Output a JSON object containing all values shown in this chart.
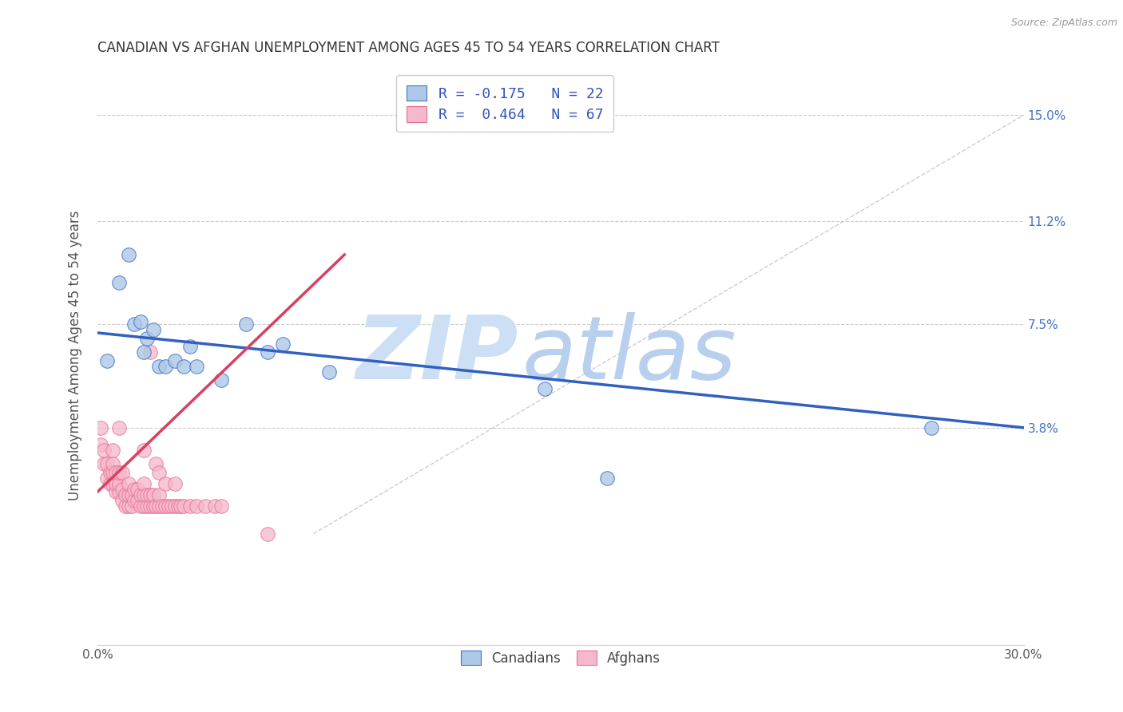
{
  "title": "CANADIAN VS AFGHAN UNEMPLOYMENT AMONG AGES 45 TO 54 YEARS CORRELATION CHART",
  "source": "Source: ZipAtlas.com",
  "ylabel": "Unemployment Among Ages 45 to 54 years",
  "y_tick_labels": [
    "3.8%",
    "7.5%",
    "11.2%",
    "15.0%"
  ],
  "y_ticks": [
    0.038,
    0.075,
    0.112,
    0.15
  ],
  "xlim": [
    0.0,
    0.3
  ],
  "ylim": [
    -0.04,
    0.168
  ],
  "legend_line1": "R = -0.175   N = 22",
  "legend_line2": "R =  0.464   N = 67",
  "canadian_fill": "#adc8e8",
  "afghan_fill": "#f5b8cc",
  "canadian_edge": "#4472c4",
  "afghan_edge": "#e87090",
  "canadian_line_color": "#3060c0",
  "afghan_line_color": "#d84060",
  "diagonal_color": "#c8c8c8",
  "watermark_zip_color": "#ccdff5",
  "watermark_atlas_color": "#b8d0ee",
  "canadians_x": [
    0.003,
    0.007,
    0.01,
    0.012,
    0.014,
    0.015,
    0.016,
    0.018,
    0.02,
    0.022,
    0.025,
    0.028,
    0.03,
    0.032,
    0.04,
    0.048,
    0.055,
    0.06,
    0.075,
    0.145,
    0.165,
    0.27
  ],
  "canadians_y": [
    0.062,
    0.09,
    0.1,
    0.075,
    0.076,
    0.065,
    0.07,
    0.073,
    0.06,
    0.06,
    0.062,
    0.06,
    0.067,
    0.06,
    0.055,
    0.075,
    0.065,
    0.068,
    0.058,
    0.052,
    0.02,
    0.038
  ],
  "afghans_x": [
    0.001,
    0.001,
    0.002,
    0.002,
    0.003,
    0.003,
    0.004,
    0.004,
    0.005,
    0.005,
    0.005,
    0.005,
    0.006,
    0.006,
    0.006,
    0.007,
    0.007,
    0.007,
    0.007,
    0.008,
    0.008,
    0.008,
    0.009,
    0.009,
    0.01,
    0.01,
    0.01,
    0.011,
    0.011,
    0.012,
    0.012,
    0.013,
    0.013,
    0.014,
    0.014,
    0.015,
    0.015,
    0.015,
    0.015,
    0.016,
    0.016,
    0.017,
    0.017,
    0.017,
    0.018,
    0.018,
    0.019,
    0.019,
    0.02,
    0.02,
    0.02,
    0.021,
    0.022,
    0.022,
    0.023,
    0.024,
    0.025,
    0.025,
    0.026,
    0.027,
    0.028,
    0.03,
    0.032,
    0.035,
    0.038,
    0.04,
    0.055
  ],
  "afghans_y": [
    0.032,
    0.038,
    0.025,
    0.03,
    0.02,
    0.025,
    0.018,
    0.022,
    0.018,
    0.022,
    0.025,
    0.03,
    0.015,
    0.018,
    0.022,
    0.015,
    0.018,
    0.022,
    0.038,
    0.012,
    0.016,
    0.022,
    0.01,
    0.014,
    0.01,
    0.014,
    0.018,
    0.01,
    0.014,
    0.012,
    0.016,
    0.012,
    0.016,
    0.01,
    0.014,
    0.01,
    0.014,
    0.018,
    0.03,
    0.01,
    0.014,
    0.01,
    0.014,
    0.065,
    0.01,
    0.014,
    0.01,
    0.025,
    0.01,
    0.014,
    0.022,
    0.01,
    0.01,
    0.018,
    0.01,
    0.01,
    0.01,
    0.018,
    0.01,
    0.01,
    0.01,
    0.01,
    0.01,
    0.01,
    0.01,
    0.01,
    0.0
  ],
  "afghan_line_x_start": 0.0,
  "afghan_line_x_end": 0.08,
  "afghan_line_y_start": 0.015,
  "afghan_line_y_end": 0.1,
  "canadian_line_x_start": 0.0,
  "canadian_line_x_end": 0.3,
  "canadian_line_y_start": 0.072,
  "canadian_line_y_end": 0.038
}
